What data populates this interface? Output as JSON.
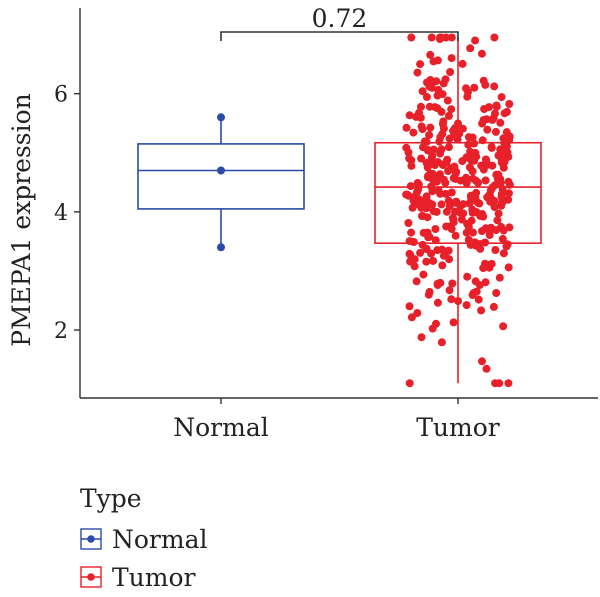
{
  "chart_data": {
    "type": "boxplot",
    "ylabel": "PMEPA1 expression",
    "yticks": [
      2,
      4,
      6
    ],
    "ylim": [
      0.85,
      7.45
    ],
    "grid": false,
    "comparison": {
      "label": "0.72",
      "between": [
        "Normal",
        "Tumor"
      ]
    },
    "legend": {
      "title": "Type",
      "placement": "bottom-left",
      "items": [
        {
          "name": "Normal",
          "color": "#2a4ba8"
        },
        {
          "name": "Tumor",
          "color": "#e8202a"
        }
      ]
    },
    "series": [
      {
        "name": "Normal",
        "color": "#2a4ba8",
        "box": {
          "whisker_low": 3.4,
          "q1": 4.05,
          "median": 4.7,
          "q3": 5.15,
          "whisker_high": 5.6
        },
        "points": [
          5.6,
          4.7,
          3.4
        ]
      },
      {
        "name": "Tumor",
        "color": "#e8202a",
        "box": {
          "whisker_low": 1.1,
          "q1": 3.47,
          "median": 4.42,
          "q3": 5.17,
          "whisker_high": 6.95
        },
        "n_points": 380,
        "points_approx": "jittered distribution, approx. normal around 4.4, range 1.1–6.95"
      }
    ]
  }
}
